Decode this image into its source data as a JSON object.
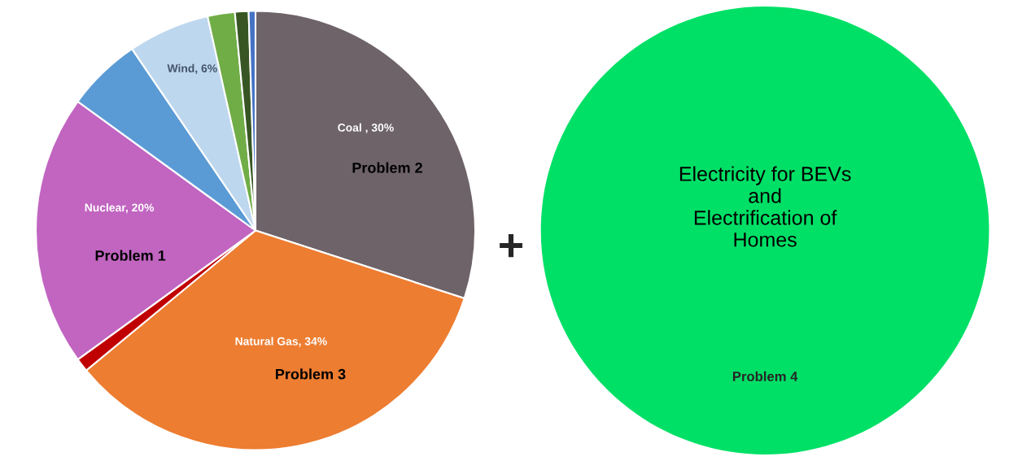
{
  "chart_data": [
    {
      "type": "pie",
      "categories": [
        "Coal , 30%",
        "Natural Gas, 34%",
        null,
        "Nuclear, 20%",
        null,
        "Wind, 6%",
        null,
        null,
        null
      ],
      "values": [
        30,
        34,
        1,
        20,
        5.5,
        6,
        2,
        1,
        0.5
      ],
      "colors": [
        "#6e6369",
        "#ed7d31",
        "#c00000",
        "#c165c1",
        "#5b9bd5",
        "#bdd7ee",
        "#70ad47",
        "#375623",
        "#4472c4"
      ],
      "annotations": [
        "Problem 2",
        "Problem 3",
        "Problem 1"
      ]
    },
    {
      "type": "other",
      "title": "Electricity for BEVs\nand\nElectrification of\nHomes",
      "annotations": [
        "Problem 4",
        "+"
      ]
    }
  ]
}
